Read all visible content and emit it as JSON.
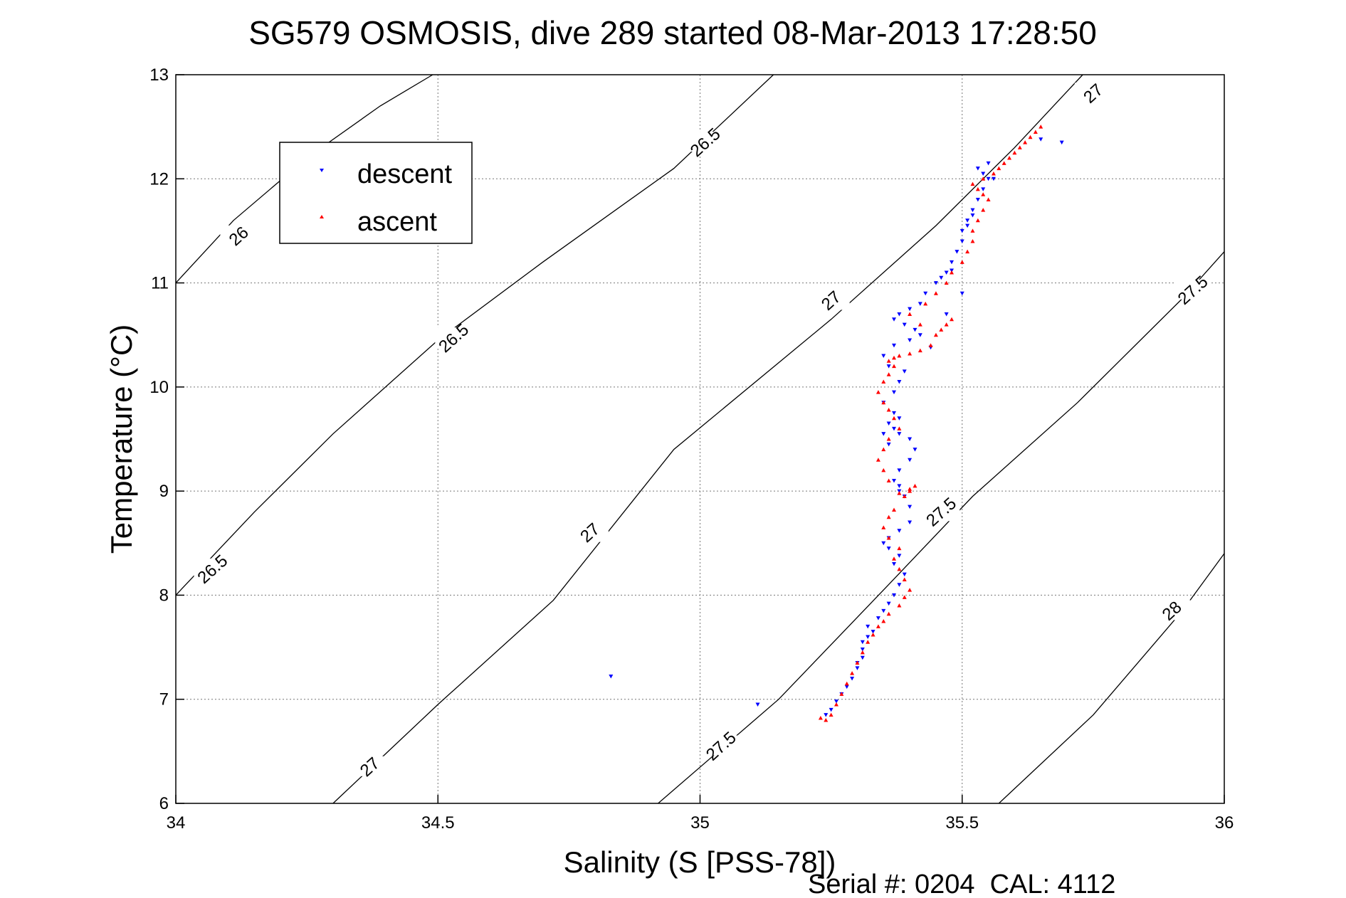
{
  "chart_data": {
    "type": "scatter",
    "title": "SG579 OSMOSIS, dive 289 started 08-Mar-2013 17:28:50",
    "xlabel": "Salinity (S [PSS-78])",
    "ylabel": "Temperature (°C)",
    "xlim": [
      34,
      36
    ],
    "ylim": [
      6,
      13
    ],
    "xticks": [
      "34",
      "34.5",
      "35",
      "35.5",
      "36"
    ],
    "yticks": [
      "6",
      "7",
      "8",
      "9",
      "10",
      "11",
      "12",
      "13"
    ],
    "grid": true,
    "legend_position": "top-left",
    "footer": "Serial #: 0204  CAL: 4112",
    "colors": {
      "descent": "#0000ff",
      "ascent": "#ff0000",
      "contour": "#000000"
    },
    "density_contours": [
      {
        "label": "26",
        "points": [
          [
            34.0,
            11.0
          ],
          [
            34.11,
            11.6
          ],
          [
            34.25,
            12.2
          ],
          [
            34.39,
            12.7
          ],
          [
            34.49,
            13.0
          ]
        ],
        "label_at": [
          34.12,
          11.45
        ]
      },
      {
        "label": "26.5",
        "points": [
          [
            34.0,
            8.0
          ],
          [
            34.15,
            8.8
          ],
          [
            34.3,
            9.55
          ],
          [
            34.5,
            10.45
          ],
          [
            34.7,
            11.2
          ],
          [
            34.95,
            12.1
          ],
          [
            35.14,
            13.0
          ]
        ],
        "label_at_list": [
          [
            34.07,
            8.25
          ],
          [
            34.53,
            10.47
          ],
          [
            35.01,
            12.35
          ]
        ]
      },
      {
        "label": "27",
        "points": [
          [
            34.3,
            6.0
          ],
          [
            34.5,
            6.95
          ],
          [
            34.72,
            7.95
          ],
          [
            34.95,
            9.4
          ],
          [
            35.25,
            10.65
          ],
          [
            35.45,
            11.55
          ],
          [
            35.6,
            12.3
          ],
          [
            35.73,
            13.0
          ]
        ],
        "label_at_list": [
          [
            34.37,
            6.35
          ],
          [
            34.79,
            8.6
          ],
          [
            35.25,
            10.83
          ],
          [
            35.75,
            12.82
          ]
        ]
      },
      {
        "label": "27.5",
        "points": [
          [
            34.92,
            6.0
          ],
          [
            35.15,
            7.0
          ],
          [
            35.35,
            8.05
          ],
          [
            35.52,
            8.95
          ],
          [
            35.72,
            9.85
          ],
          [
            35.92,
            10.85
          ],
          [
            36.0,
            11.3
          ]
        ],
        "label_at_list": [
          [
            35.04,
            6.55
          ],
          [
            35.46,
            8.8
          ],
          [
            35.94,
            10.93
          ]
        ]
      },
      {
        "label": "28",
        "points": [
          [
            35.57,
            6.0
          ],
          [
            35.75,
            6.85
          ],
          [
            35.92,
            7.85
          ],
          [
            36.0,
            8.4
          ]
        ],
        "label_at": [
          35.9,
          7.85
        ]
      }
    ],
    "series": [
      {
        "name": "descent",
        "marker": "triangle-down",
        "x": [
          34.83,
          35.11,
          35.24,
          35.25,
          35.26,
          35.27,
          35.28,
          35.29,
          35.3,
          35.3,
          35.31,
          35.31,
          35.31,
          35.32,
          35.33,
          35.32,
          35.34,
          35.35,
          35.36,
          35.37,
          35.38,
          35.39,
          35.37,
          35.38,
          35.36,
          35.35,
          35.36,
          35.38,
          35.4,
          35.4,
          35.39,
          35.38,
          35.38,
          35.37,
          35.38,
          35.4,
          35.41,
          35.4,
          35.38,
          35.37,
          35.38,
          35.37,
          35.36,
          35.35,
          35.36,
          35.35,
          35.37,
          35.38,
          35.39,
          35.36,
          35.35,
          35.37,
          35.4,
          35.41,
          35.39,
          35.37,
          35.38,
          35.4,
          35.42,
          35.43,
          35.45,
          35.46,
          35.47,
          35.48,
          35.48,
          35.49,
          35.5,
          35.5,
          35.51,
          35.51,
          35.52,
          35.52,
          35.53,
          35.54,
          35.55,
          35.54,
          35.53,
          35.55,
          35.56,
          35.65,
          35.69,
          35.42,
          35.44,
          35.47,
          35.5
        ],
        "y": [
          7.22,
          6.95,
          6.85,
          6.9,
          6.98,
          7.05,
          7.12,
          7.2,
          7.3,
          7.35,
          7.4,
          7.48,
          7.55,
          7.6,
          7.65,
          7.7,
          7.78,
          7.85,
          7.92,
          8.0,
          8.1,
          8.2,
          8.3,
          8.38,
          8.45,
          8.5,
          8.55,
          8.62,
          8.7,
          8.85,
          8.95,
          9.0,
          9.05,
          9.1,
          9.2,
          9.3,
          9.4,
          9.5,
          9.55,
          9.6,
          9.7,
          9.75,
          9.65,
          9.55,
          9.45,
          9.85,
          9.95,
          10.05,
          10.15,
          10.2,
          10.3,
          10.4,
          10.45,
          10.55,
          10.6,
          10.65,
          10.7,
          10.75,
          10.8,
          10.9,
          11.0,
          11.05,
          11.1,
          11.12,
          11.2,
          11.3,
          11.4,
          11.5,
          11.55,
          11.6,
          11.65,
          11.7,
          11.8,
          11.9,
          12.0,
          12.05,
          12.1,
          12.15,
          12.0,
          12.38,
          12.35,
          10.5,
          10.38,
          10.7,
          10.9
        ]
      },
      {
        "name": "ascent",
        "marker": "triangle-up",
        "x": [
          35.23,
          35.24,
          35.25,
          35.26,
          35.27,
          35.28,
          35.29,
          35.3,
          35.31,
          35.32,
          35.33,
          35.34,
          35.35,
          35.36,
          35.38,
          35.39,
          35.4,
          35.39,
          35.38,
          35.37,
          35.38,
          35.36,
          35.35,
          35.36,
          35.37,
          35.39,
          35.4,
          35.41,
          35.4,
          35.38,
          35.36,
          35.35,
          35.34,
          35.35,
          35.36,
          35.38,
          35.37,
          35.36,
          35.35,
          35.34,
          35.35,
          35.36,
          35.37,
          35.36,
          35.37,
          35.38,
          35.4,
          35.42,
          35.44,
          35.45,
          35.47,
          35.48,
          35.46,
          35.42,
          35.4,
          35.43,
          35.45,
          35.47,
          35.48,
          35.5,
          35.51,
          35.52,
          35.52,
          35.53,
          35.54,
          35.55,
          35.54,
          35.53,
          35.52,
          35.54,
          35.56,
          35.57,
          35.58,
          35.59,
          35.6,
          35.61,
          35.62,
          35.63,
          35.64,
          35.65
        ],
        "y": [
          6.82,
          6.8,
          6.85,
          6.95,
          7.05,
          7.15,
          7.25,
          7.35,
          7.45,
          7.55,
          7.62,
          7.7,
          7.75,
          7.82,
          7.9,
          7.98,
          8.05,
          8.15,
          8.25,
          8.35,
          8.45,
          8.55,
          8.65,
          8.75,
          8.82,
          8.95,
          9.0,
          9.05,
          9.02,
          8.98,
          9.1,
          9.2,
          9.3,
          9.4,
          9.5,
          9.6,
          9.7,
          9.78,
          9.85,
          9.95,
          10.05,
          10.12,
          10.2,
          10.25,
          10.28,
          10.3,
          10.32,
          10.35,
          10.4,
          10.5,
          10.6,
          10.65,
          10.55,
          10.6,
          10.7,
          10.8,
          10.9,
          11.0,
          11.1,
          11.2,
          11.3,
          11.4,
          11.5,
          11.6,
          11.7,
          11.8,
          11.85,
          11.9,
          11.95,
          12.0,
          12.05,
          12.1,
          12.15,
          12.2,
          12.25,
          12.3,
          12.35,
          12.4,
          12.45,
          12.5
        ]
      }
    ]
  }
}
